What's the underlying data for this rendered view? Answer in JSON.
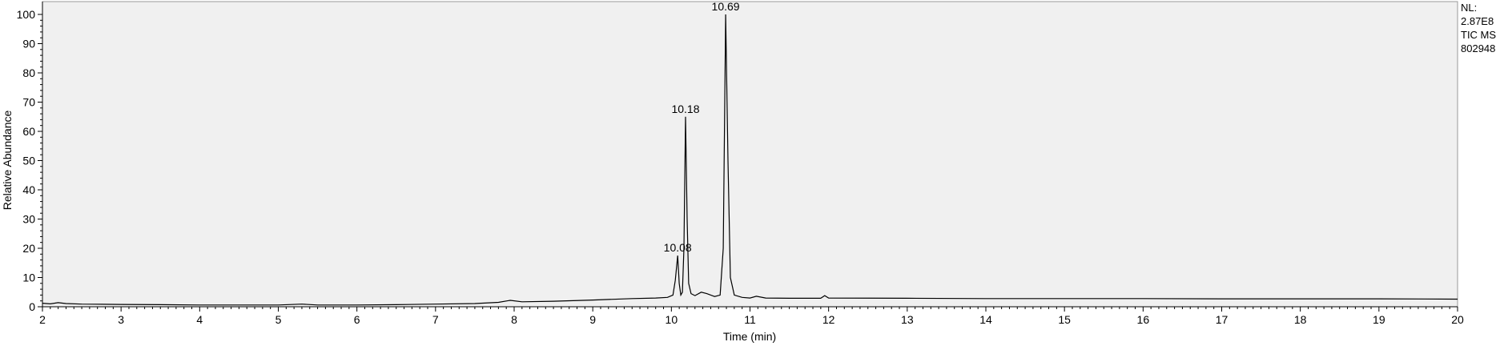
{
  "chart_data": {
    "type": "line",
    "xlabel": "Time (min)",
    "ylabel": "Relative Abundance",
    "xlim": [
      2,
      20
    ],
    "ylim": [
      0,
      100
    ],
    "x_ticks": [
      2,
      3,
      4,
      5,
      6,
      7,
      8,
      9,
      10,
      11,
      12,
      13,
      14,
      15,
      16,
      17,
      18,
      19,
      20
    ],
    "y_ticks": [
      0,
      10,
      20,
      30,
      40,
      50,
      60,
      70,
      80,
      90,
      100
    ],
    "info_lines": [
      "NL:",
      "2.87E8",
      "TIC MS",
      "802948"
    ],
    "peak_labels": [
      {
        "label": "10.08",
        "x": 10.08,
        "y": 17.5
      },
      {
        "label": "10.18",
        "x": 10.18,
        "y": 65
      },
      {
        "label": "10.69",
        "x": 10.69,
        "y": 100
      }
    ],
    "series": [
      {
        "color": "#000000",
        "points": [
          [
            2.0,
            1.2
          ],
          [
            2.1,
            1.0
          ],
          [
            2.2,
            1.4
          ],
          [
            2.3,
            1.1
          ],
          [
            2.5,
            0.9
          ],
          [
            3.0,
            0.8
          ],
          [
            3.5,
            0.7
          ],
          [
            4.0,
            0.6
          ],
          [
            4.5,
            0.6
          ],
          [
            5.0,
            0.6
          ],
          [
            5.3,
            0.9
          ],
          [
            5.5,
            0.6
          ],
          [
            6.0,
            0.6
          ],
          [
            6.5,
            0.7
          ],
          [
            7.0,
            0.9
          ],
          [
            7.5,
            1.1
          ],
          [
            7.8,
            1.5
          ],
          [
            7.95,
            2.2
          ],
          [
            8.1,
            1.7
          ],
          [
            8.5,
            1.9
          ],
          [
            9.0,
            2.3
          ],
          [
            9.5,
            2.8
          ],
          [
            9.8,
            3.0
          ],
          [
            9.95,
            3.2
          ],
          [
            10.02,
            4.0
          ],
          [
            10.05,
            9.0
          ],
          [
            10.08,
            17.5
          ],
          [
            10.1,
            8.0
          ],
          [
            10.12,
            4.0
          ],
          [
            10.14,
            5.0
          ],
          [
            10.16,
            20.0
          ],
          [
            10.18,
            65.0
          ],
          [
            10.2,
            30.0
          ],
          [
            10.22,
            8.0
          ],
          [
            10.25,
            4.5
          ],
          [
            10.3,
            3.8
          ],
          [
            10.38,
            5.0
          ],
          [
            10.45,
            4.5
          ],
          [
            10.55,
            3.5
          ],
          [
            10.62,
            4.0
          ],
          [
            10.66,
            20.0
          ],
          [
            10.69,
            100.0
          ],
          [
            10.72,
            50.0
          ],
          [
            10.75,
            10.0
          ],
          [
            10.8,
            4.0
          ],
          [
            10.9,
            3.2
          ],
          [
            11.0,
            3.0
          ],
          [
            11.08,
            3.6
          ],
          [
            11.2,
            3.0
          ],
          [
            11.5,
            2.9
          ],
          [
            11.9,
            2.9
          ],
          [
            11.95,
            3.8
          ],
          [
            12.0,
            3.0
          ],
          [
            13.0,
            2.9
          ],
          [
            14.0,
            2.8
          ],
          [
            15.0,
            2.8
          ],
          [
            16.0,
            2.8
          ],
          [
            17.0,
            2.7
          ],
          [
            18.0,
            2.7
          ],
          [
            19.0,
            2.7
          ],
          [
            20.0,
            2.6
          ]
        ]
      }
    ],
    "background_color": "#f0f0f0",
    "grid": false
  }
}
